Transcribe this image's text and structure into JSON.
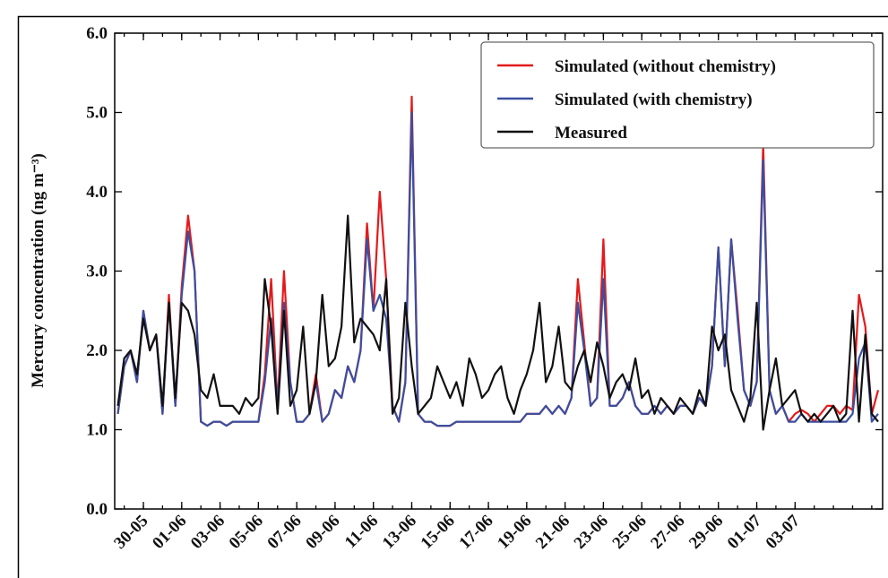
{
  "chart_data": {
    "type": "line",
    "ylabel": "Mercury concentration (ng m⁻³)",
    "ylim": [
      0,
      6
    ],
    "yticks": [
      {
        "value": 0,
        "label": "0.0"
      },
      {
        "value": 1,
        "label": "1.0"
      },
      {
        "value": 2,
        "label": "2.0"
      },
      {
        "value": 3,
        "label": "3.0"
      },
      {
        "value": 4,
        "label": "4.0"
      },
      {
        "value": 5,
        "label": "5.0"
      },
      {
        "value": 6,
        "label": "6.0"
      }
    ],
    "legend": "upper right",
    "categories": [
      null,
      null,
      null,
      null,
      "30-05",
      null,
      null,
      null,
      null,
      null,
      "01-06",
      null,
      null,
      null,
      null,
      null,
      "03-06",
      null,
      null,
      null,
      null,
      null,
      "05-06",
      null,
      null,
      null,
      null,
      null,
      "07-06",
      null,
      null,
      null,
      null,
      null,
      "09-06",
      null,
      null,
      null,
      null,
      null,
      "11-06",
      null,
      null,
      null,
      null,
      null,
      "13-06",
      null,
      null,
      null,
      null,
      null,
      "15-06",
      null,
      null,
      null,
      null,
      null,
      "17-06",
      null,
      null,
      null,
      null,
      null,
      "19-06",
      null,
      null,
      null,
      null,
      null,
      "21-06",
      null,
      null,
      null,
      null,
      null,
      "23-06",
      null,
      null,
      null,
      null,
      null,
      "25-06",
      null,
      null,
      null,
      null,
      null,
      "27-06",
      null,
      null,
      null,
      null,
      null,
      "29-06",
      null,
      null,
      null,
      null,
      null,
      "01-07",
      null,
      null,
      null,
      null,
      null,
      "03-07",
      null,
      null,
      null,
      null,
      null,
      null,
      null,
      null,
      null,
      null,
      null,
      null,
      null
    ],
    "series": [
      {
        "name": "Simulated (without chemistry)",
        "color": "#e41a1c",
        "values": [
          1.2,
          1.8,
          2.0,
          1.6,
          2.5,
          2.0,
          2.2,
          1.2,
          2.7,
          1.3,
          2.8,
          3.7,
          3.0,
          1.1,
          1.05,
          1.1,
          1.1,
          1.05,
          1.1,
          1.1,
          1.1,
          1.1,
          1.1,
          1.7,
          2.9,
          1.3,
          3.0,
          1.6,
          1.1,
          1.1,
          1.2,
          1.7,
          1.1,
          1.2,
          1.5,
          1.4,
          1.8,
          1.6,
          2.0,
          3.6,
          2.5,
          4.0,
          2.9,
          1.3,
          1.1,
          1.6,
          5.2,
          1.2,
          1.1,
          1.1,
          1.05,
          1.05,
          1.05,
          1.1,
          1.1,
          1.1,
          1.1,
          1.1,
          1.1,
          1.1,
          1.1,
          1.1,
          1.1,
          1.1,
          1.2,
          1.2,
          1.2,
          1.3,
          1.2,
          1.3,
          1.2,
          1.4,
          2.9,
          2.1,
          1.3,
          1.4,
          3.4,
          1.3,
          1.3,
          1.4,
          1.6,
          1.3,
          1.2,
          1.2,
          1.3,
          1.2,
          1.3,
          1.2,
          1.3,
          1.3,
          1.2,
          1.4,
          1.3,
          1.8,
          3.3,
          1.8,
          3.4,
          2.5,
          1.5,
          1.3,
          1.6,
          4.6,
          1.5,
          1.2,
          1.3,
          1.1,
          1.2,
          1.25,
          1.2,
          1.1,
          1.2,
          1.3,
          1.3,
          1.2,
          1.3,
          1.25,
          2.7,
          2.3,
          1.2,
          1.5
        ]
      },
      {
        "name": "Simulated (with chemistry)",
        "color": "#3a4fa0",
        "values": [
          1.2,
          1.8,
          2.0,
          1.6,
          2.5,
          2.0,
          2.2,
          1.2,
          2.6,
          1.3,
          2.7,
          3.5,
          3.0,
          1.1,
          1.05,
          1.1,
          1.1,
          1.05,
          1.1,
          1.1,
          1.1,
          1.1,
          1.1,
          1.6,
          2.4,
          1.3,
          2.6,
          1.6,
          1.1,
          1.1,
          1.2,
          1.6,
          1.1,
          1.2,
          1.5,
          1.4,
          1.8,
          1.6,
          2.0,
          3.4,
          2.5,
          2.7,
          2.4,
          1.3,
          1.1,
          1.6,
          5.0,
          1.2,
          1.1,
          1.1,
          1.05,
          1.05,
          1.05,
          1.1,
          1.1,
          1.1,
          1.1,
          1.1,
          1.1,
          1.1,
          1.1,
          1.1,
          1.1,
          1.1,
          1.2,
          1.2,
          1.2,
          1.3,
          1.2,
          1.3,
          1.2,
          1.4,
          2.6,
          2.0,
          1.3,
          1.4,
          2.9,
          1.3,
          1.3,
          1.4,
          1.6,
          1.3,
          1.2,
          1.2,
          1.3,
          1.2,
          1.3,
          1.2,
          1.3,
          1.3,
          1.2,
          1.4,
          1.3,
          1.8,
          3.3,
          1.8,
          3.4,
          2.4,
          1.5,
          1.3,
          1.6,
          4.4,
          1.5,
          1.2,
          1.3,
          1.1,
          1.1,
          1.2,
          1.1,
          1.1,
          1.1,
          1.1,
          1.1,
          1.1,
          1.1,
          1.2,
          1.9,
          2.1,
          1.1,
          1.2
        ]
      },
      {
        "name": "Measured",
        "color": "#111111",
        "values": [
          1.3,
          1.9,
          2.0,
          1.7,
          2.4,
          2.0,
          2.2,
          1.3,
          2.6,
          1.4,
          2.6,
          2.5,
          2.2,
          1.5,
          1.4,
          1.7,
          1.3,
          1.3,
          1.3,
          1.2,
          1.4,
          1.3,
          1.4,
          2.9,
          2.3,
          1.2,
          2.5,
          1.3,
          1.5,
          2.3,
          1.2,
          1.6,
          2.7,
          1.8,
          1.9,
          2.3,
          3.7,
          2.1,
          2.4,
          2.3,
          2.2,
          2.0,
          2.9,
          1.2,
          1.4,
          2.6,
          1.8,
          1.2,
          1.3,
          1.4,
          1.8,
          1.6,
          1.4,
          1.6,
          1.3,
          1.9,
          1.7,
          1.4,
          1.5,
          1.7,
          1.8,
          1.4,
          1.2,
          1.5,
          1.7,
          2.0,
          2.6,
          1.6,
          1.8,
          2.3,
          1.6,
          1.5,
          1.8,
          2.0,
          1.6,
          2.1,
          1.8,
          1.4,
          1.6,
          1.7,
          1.5,
          1.9,
          1.4,
          1.5,
          1.2,
          1.4,
          1.3,
          1.2,
          1.4,
          1.3,
          1.2,
          1.5,
          1.3,
          2.3,
          2.0,
          2.2,
          1.5,
          1.3,
          1.1,
          1.4,
          2.6,
          1.0,
          1.5,
          1.9,
          1.3,
          1.4,
          1.5,
          1.2,
          1.1,
          1.2,
          1.1,
          1.2,
          1.3,
          1.1,
          1.2,
          2.5,
          1.1,
          2.2,
          1.2,
          1.1
        ]
      }
    ]
  }
}
